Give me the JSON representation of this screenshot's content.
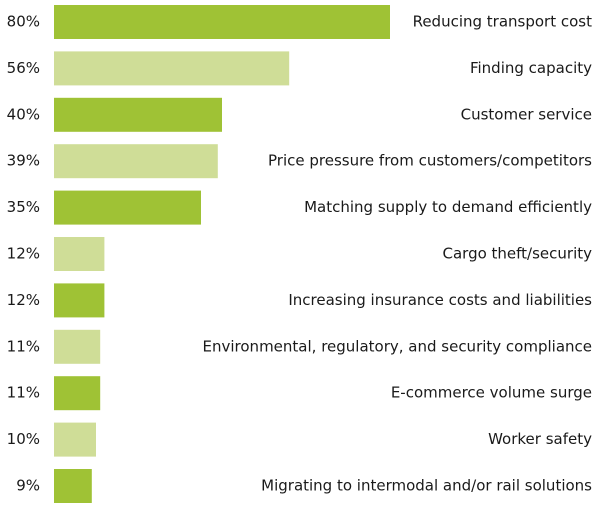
{
  "chart_data": {
    "type": "bar",
    "orientation": "horizontal",
    "categories": [
      "Reducing transport cost",
      "Finding capacity",
      "Customer service",
      "Price pressure from customers/competitors",
      "Matching supply to demand efficiently",
      "Cargo theft/security",
      "Increasing insurance costs and liabilities",
      "Environmental, regulatory, and security compliance",
      "E-commerce volume surge",
      "Worker safety",
      "Migrating to intermodal and/or rail solutions"
    ],
    "values": [
      80,
      56,
      40,
      39,
      35,
      12,
      12,
      11,
      11,
      10,
      9
    ],
    "value_labels": [
      "80%",
      "56%",
      "40%",
      "39%",
      "35%",
      "12%",
      "12%",
      "11%",
      "11%",
      "10%",
      "9%"
    ],
    "unit": "%",
    "xlim": [
      0,
      100
    ],
    "grid": false,
    "legend": "none",
    "colors": {
      "primary": "#9fc235",
      "secondary": "#cfdd97"
    }
  }
}
